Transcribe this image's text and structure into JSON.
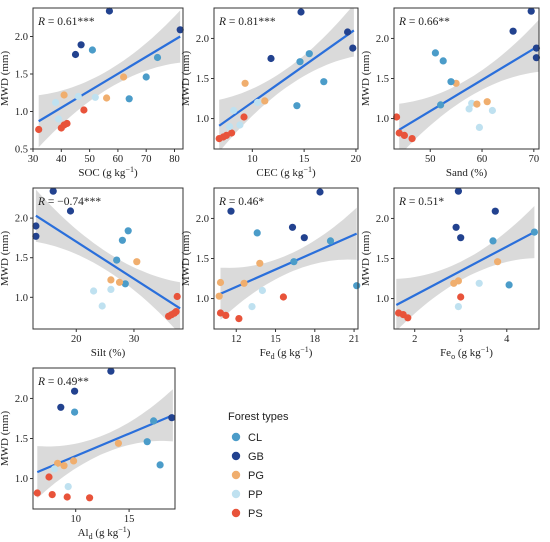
{
  "legend": {
    "title": "Forest types",
    "items": [
      {
        "label": "CL",
        "color": "#4b9cc9"
      },
      {
        "label": "GB",
        "color": "#22428f"
      },
      {
        "label": "PG",
        "color": "#f0ae6e"
      },
      {
        "label": "PP",
        "color": "#bfe1f0"
      },
      {
        "label": "PS",
        "color": "#e8533a"
      }
    ]
  },
  "style": {
    "fit_line": "#2a6fdb",
    "band": "#d3d3d3"
  },
  "chart_data": [
    {
      "type": "scatter",
      "id": "soc",
      "stat_label": "R = 0.61***",
      "stat_r": "R",
      "stat_rest": " = 0.61***",
      "xlabel": "SOC (g kg⁻¹)",
      "x_main": "SOC (g kg",
      "x_sup": "−1",
      "x_sub": "",
      "x_tail": ")",
      "ylabel": "MWD (mm)",
      "xlim": [
        30,
        83
      ],
      "ylim": [
        0.5,
        2.38
      ],
      "xticks": [
        30,
        40,
        50,
        60,
        70,
        80
      ],
      "yticks": [
        0.5,
        1.0,
        1.5,
        2.0
      ],
      "fit": {
        "x": [
          32,
          82
        ],
        "y": [
          0.87,
          2.0
        ]
      },
      "points": [
        {
          "x": 32,
          "y": 0.76,
          "group": "PS"
        },
        {
          "x": 40,
          "y": 0.78,
          "group": "PS"
        },
        {
          "x": 41,
          "y": 0.82,
          "group": "PS"
        },
        {
          "x": 42,
          "y": 0.84,
          "group": "PS"
        },
        {
          "x": 48,
          "y": 1.02,
          "group": "PS"
        },
        {
          "x": 39,
          "y": 0.9,
          "group": "PP"
        },
        {
          "x": 38,
          "y": 1.12,
          "group": "PP"
        },
        {
          "x": 46,
          "y": 1.2,
          "group": "PP"
        },
        {
          "x": 52,
          "y": 1.19,
          "group": "PP"
        },
        {
          "x": 41,
          "y": 1.22,
          "group": "PG"
        },
        {
          "x": 56,
          "y": 1.18,
          "group": "PG"
        },
        {
          "x": 62,
          "y": 1.46,
          "group": "PG"
        },
        {
          "x": 51,
          "y": 1.82,
          "group": "CL"
        },
        {
          "x": 64,
          "y": 1.17,
          "group": "CL"
        },
        {
          "x": 70,
          "y": 1.46,
          "group": "CL"
        },
        {
          "x": 74,
          "y": 1.72,
          "group": "CL"
        },
        {
          "x": 45,
          "y": 1.76,
          "group": "GB"
        },
        {
          "x": 47,
          "y": 1.89,
          "group": "GB"
        },
        {
          "x": 57,
          "y": 2.34,
          "group": "GB"
        },
        {
          "x": 82,
          "y": 2.09,
          "group": "GB"
        }
      ]
    },
    {
      "type": "scatter",
      "id": "cec",
      "stat_label": "R = 0.81***",
      "stat_r": "R",
      "stat_rest": " = 0.81***",
      "xlabel": "CEC (g kg⁻¹)",
      "x_main": "CEC (g kg",
      "x_sup": "−1",
      "x_sub": "",
      "x_tail": ")",
      "ylabel": "MWD (mm)",
      "xlim": [
        6.3,
        20.2
      ],
      "ylim": [
        0.62,
        2.38
      ],
      "xticks": [
        10,
        15,
        20
      ],
      "yticks": [
        1.0,
        1.5,
        2.0
      ],
      "fit": {
        "x": [
          6.8,
          19.8
        ],
        "y": [
          0.91,
          2.1
        ]
      },
      "points": [
        {
          "x": 6.8,
          "y": 0.75,
          "group": "PS"
        },
        {
          "x": 7.2,
          "y": 0.77,
          "group": "PS"
        },
        {
          "x": 7.5,
          "y": 0.79,
          "group": "PS"
        },
        {
          "x": 8.0,
          "y": 0.82,
          "group": "PS"
        },
        {
          "x": 9.2,
          "y": 1.02,
          "group": "PS"
        },
        {
          "x": 7.8,
          "y": 0.9,
          "group": "PP"
        },
        {
          "x": 8.2,
          "y": 1.1,
          "group": "PP"
        },
        {
          "x": 8.8,
          "y": 0.92,
          "group": "PP"
        },
        {
          "x": 10.5,
          "y": 1.2,
          "group": "PP"
        },
        {
          "x": 9.3,
          "y": 1.44,
          "group": "PG"
        },
        {
          "x": 11.2,
          "y": 1.22,
          "group": "PG"
        },
        {
          "x": 14.3,
          "y": 1.16,
          "group": "CL"
        },
        {
          "x": 15.5,
          "y": 1.81,
          "group": "CL"
        },
        {
          "x": 16.9,
          "y": 1.46,
          "group": "CL"
        },
        {
          "x": 14.6,
          "y": 1.71,
          "group": "CL"
        },
        {
          "x": 11.8,
          "y": 1.75,
          "group": "GB"
        },
        {
          "x": 14.7,
          "y": 2.33,
          "group": "GB"
        },
        {
          "x": 19.2,
          "y": 2.08,
          "group": "GB"
        },
        {
          "x": 19.7,
          "y": 1.88,
          "group": "GB"
        }
      ]
    },
    {
      "type": "scatter",
      "id": "sand",
      "stat_label": "R = 0.66**",
      "stat_r": "R",
      "stat_rest": " = 0.66**",
      "xlabel": "Sand (%)",
      "x_main": "Sand (%)",
      "x_sup": "",
      "x_sub": "",
      "x_tail": "",
      "ylabel": "MWD (mm)",
      "xlim": [
        43,
        71
      ],
      "ylim": [
        0.62,
        2.38
      ],
      "xticks": [
        50,
        60,
        70
      ],
      "yticks": [
        1.0,
        1.5,
        2.0
      ],
      "fit": {
        "x": [
          44,
          71
        ],
        "y": [
          0.86,
          1.91
        ]
      },
      "points": [
        {
          "x": 43.5,
          "y": 1.02,
          "group": "PS"
        },
        {
          "x": 44,
          "y": 0.82,
          "group": "PS"
        },
        {
          "x": 45,
          "y": 0.79,
          "group": "PS"
        },
        {
          "x": 46.5,
          "y": 0.75,
          "group": "PS"
        },
        {
          "x": 57.5,
          "y": 1.12,
          "group": "PP"
        },
        {
          "x": 58,
          "y": 1.19,
          "group": "PP"
        },
        {
          "x": 59.5,
          "y": 0.89,
          "group": "PP"
        },
        {
          "x": 62,
          "y": 1.1,
          "group": "PP"
        },
        {
          "x": 55,
          "y": 1.44,
          "group": "PG"
        },
        {
          "x": 59,
          "y": 1.18,
          "group": "PG"
        },
        {
          "x": 61,
          "y": 1.21,
          "group": "PG"
        },
        {
          "x": 51,
          "y": 1.82,
          "group": "CL"
        },
        {
          "x": 52.5,
          "y": 1.72,
          "group": "CL"
        },
        {
          "x": 54,
          "y": 1.46,
          "group": "CL"
        },
        {
          "x": 52,
          "y": 1.17,
          "group": "CL"
        },
        {
          "x": 66,
          "y": 2.09,
          "group": "GB"
        },
        {
          "x": 69.5,
          "y": 2.34,
          "group": "GB"
        },
        {
          "x": 70.5,
          "y": 1.88,
          "group": "GB"
        },
        {
          "x": 70.5,
          "y": 1.76,
          "group": "GB"
        }
      ]
    },
    {
      "type": "scatter",
      "id": "silt",
      "stat_label": "R = −0.74***",
      "stat_r": "R",
      "stat_rest": " = −0.74***",
      "xlabel": "Silt (%)",
      "x_main": "Silt (%)",
      "x_sup": "",
      "x_sub": "",
      "x_tail": "",
      "ylabel": "MWD (mm)",
      "xlim": [
        12.5,
        38.5
      ],
      "ylim": [
        0.6,
        2.38
      ],
      "xticks": [
        20,
        30
      ],
      "yticks": [
        1.0,
        1.5,
        2.0
      ],
      "fit": {
        "x": [
          13,
          38
        ],
        "y": [
          2.03,
          0.86
        ]
      },
      "points": [
        {
          "x": 13,
          "y": 1.9,
          "group": "GB"
        },
        {
          "x": 13,
          "y": 1.77,
          "group": "GB"
        },
        {
          "x": 16,
          "y": 2.34,
          "group": "GB"
        },
        {
          "x": 19,
          "y": 2.09,
          "group": "GB"
        },
        {
          "x": 28,
          "y": 1.72,
          "group": "CL"
        },
        {
          "x": 29,
          "y": 1.84,
          "group": "CL"
        },
        {
          "x": 27,
          "y": 1.47,
          "group": "CL"
        },
        {
          "x": 28.5,
          "y": 1.17,
          "group": "CL"
        },
        {
          "x": 26,
          "y": 1.22,
          "group": "PG"
        },
        {
          "x": 27.5,
          "y": 1.19,
          "group": "PG"
        },
        {
          "x": 30.5,
          "y": 1.45,
          "group": "PG"
        },
        {
          "x": 23,
          "y": 1.08,
          "group": "PP"
        },
        {
          "x": 24.5,
          "y": 0.89,
          "group": "PP"
        },
        {
          "x": 26,
          "y": 1.1,
          "group": "PP"
        },
        {
          "x": 37.5,
          "y": 1.01,
          "group": "PS"
        },
        {
          "x": 36,
          "y": 0.76,
          "group": "PS"
        },
        {
          "x": 36.5,
          "y": 0.78,
          "group": "PS"
        },
        {
          "x": 37,
          "y": 0.8,
          "group": "PS"
        },
        {
          "x": 37.3,
          "y": 0.82,
          "group": "PS"
        }
      ]
    },
    {
      "type": "scatter",
      "id": "fed",
      "stat_label": "R = 0.46*",
      "stat_r": "R",
      "stat_rest": " = 0.46*",
      "xlabel": "Fed (g kg⁻¹)",
      "x_main": "Fe",
      "x_sup": "−1",
      "x_sub": "d",
      "x_tail": ")",
      "ylabel": "MWD (mm)",
      "xlim": [
        10.3,
        21.3
      ],
      "ylim": [
        0.62,
        2.38
      ],
      "xticks": [
        12,
        15,
        18,
        21
      ],
      "yticks": [
        1.0,
        1.5,
        2.0
      ],
      "fit": {
        "x": [
          10.8,
          21.2
        ],
        "y": [
          1.06,
          1.81
        ]
      },
      "points": [
        {
          "x": 10.8,
          "y": 0.82,
          "group": "PS"
        },
        {
          "x": 11.2,
          "y": 0.79,
          "group": "PS"
        },
        {
          "x": 12.2,
          "y": 0.75,
          "group": "PS"
        },
        {
          "x": 15.6,
          "y": 1.02,
          "group": "PS"
        },
        {
          "x": 10.7,
          "y": 1.03,
          "group": "PG"
        },
        {
          "x": 12.6,
          "y": 1.19,
          "group": "PG"
        },
        {
          "x": 13.8,
          "y": 1.44,
          "group": "PG"
        },
        {
          "x": 10.8,
          "y": 1.2,
          "group": "PG"
        },
        {
          "x": 13.2,
          "y": 0.9,
          "group": "PP"
        },
        {
          "x": 14.0,
          "y": 1.1,
          "group": "PP"
        },
        {
          "x": 13.6,
          "y": 1.82,
          "group": "CL"
        },
        {
          "x": 16.4,
          "y": 1.46,
          "group": "CL"
        },
        {
          "x": 19.2,
          "y": 1.72,
          "group": "CL"
        },
        {
          "x": 21.2,
          "y": 1.16,
          "group": "CL"
        },
        {
          "x": 11.6,
          "y": 2.09,
          "group": "GB"
        },
        {
          "x": 16.3,
          "y": 1.89,
          "group": "GB"
        },
        {
          "x": 17.2,
          "y": 1.76,
          "group": "GB"
        },
        {
          "x": 18.4,
          "y": 2.33,
          "group": "GB"
        }
      ]
    },
    {
      "type": "scatter",
      "id": "feo",
      "stat_label": "R = 0.51*",
      "stat_r": "R",
      "stat_rest": " = 0.51*",
      "xlabel": "Feo (g kg⁻¹)",
      "x_main": "Fe",
      "x_sup": "−1",
      "x_sub": "o",
      "x_tail": ")",
      "ylabel": "MWD (mm)",
      "xlim": [
        1.55,
        4.7
      ],
      "ylim": [
        0.62,
        2.38
      ],
      "xticks": [
        2,
        3,
        4
      ],
      "yticks": [
        1.0,
        1.5,
        2.0
      ],
      "fit": {
        "x": [
          1.6,
          4.6
        ],
        "y": [
          0.92,
          1.83
        ]
      },
      "points": [
        {
          "x": 1.65,
          "y": 0.82,
          "group": "PS"
        },
        {
          "x": 1.75,
          "y": 0.8,
          "group": "PS"
        },
        {
          "x": 1.85,
          "y": 0.76,
          "group": "PS"
        },
        {
          "x": 3.0,
          "y": 1.02,
          "group": "PS"
        },
        {
          "x": 2.85,
          "y": 1.19,
          "group": "PG"
        },
        {
          "x": 2.95,
          "y": 1.22,
          "group": "PG"
        },
        {
          "x": 3.8,
          "y": 1.46,
          "group": "PG"
        },
        {
          "x": 2.95,
          "y": 0.9,
          "group": "PP"
        },
        {
          "x": 3.4,
          "y": 1.19,
          "group": "PP"
        },
        {
          "x": 3.7,
          "y": 1.72,
          "group": "CL"
        },
        {
          "x": 4.05,
          "y": 1.17,
          "group": "CL"
        },
        {
          "x": 4.6,
          "y": 1.83,
          "group": "CL"
        },
        {
          "x": 2.9,
          "y": 1.89,
          "group": "GB"
        },
        {
          "x": 2.95,
          "y": 2.34,
          "group": "GB"
        },
        {
          "x": 3.0,
          "y": 1.76,
          "group": "GB"
        },
        {
          "x": 3.75,
          "y": 2.09,
          "group": "GB"
        }
      ]
    },
    {
      "type": "scatter",
      "id": "ald",
      "stat_label": "R = 0.49**",
      "stat_r": "R",
      "stat_rest": " = 0.49**",
      "xlabel": "Ald (g kg⁻¹)",
      "x_main": "Al",
      "x_sup": "−1",
      "x_sub": "d",
      "x_tail": ")",
      "ylabel": "MWD (mm)",
      "xlim": [
        6.0,
        19.3
      ],
      "ylim": [
        0.62,
        2.38
      ],
      "xticks": [
        10,
        15
      ],
      "yticks": [
        1.0,
        1.5,
        2.0
      ],
      "fit": {
        "x": [
          6.4,
          19.1
        ],
        "y": [
          1.08,
          1.79
        ]
      },
      "points": [
        {
          "x": 6.4,
          "y": 0.82,
          "group": "PS"
        },
        {
          "x": 7.5,
          "y": 1.02,
          "group": "PS"
        },
        {
          "x": 7.8,
          "y": 0.8,
          "group": "PS"
        },
        {
          "x": 9.2,
          "y": 0.77,
          "group": "PS"
        },
        {
          "x": 11.3,
          "y": 0.76,
          "group": "PS"
        },
        {
          "x": 8.3,
          "y": 1.19,
          "group": "PG"
        },
        {
          "x": 8.9,
          "y": 1.16,
          "group": "PG"
        },
        {
          "x": 9.8,
          "y": 1.22,
          "group": "PG"
        },
        {
          "x": 14.0,
          "y": 1.44,
          "group": "PG"
        },
        {
          "x": 8.0,
          "y": 1.12,
          "group": "PP"
        },
        {
          "x": 9.3,
          "y": 0.9,
          "group": "PP"
        },
        {
          "x": 9.9,
          "y": 1.83,
          "group": "CL"
        },
        {
          "x": 16.7,
          "y": 1.46,
          "group": "CL"
        },
        {
          "x": 17.9,
          "y": 1.17,
          "group": "CL"
        },
        {
          "x": 17.3,
          "y": 1.72,
          "group": "CL"
        },
        {
          "x": 8.6,
          "y": 1.89,
          "group": "GB"
        },
        {
          "x": 9.9,
          "y": 2.09,
          "group": "GB"
        },
        {
          "x": 13.3,
          "y": 2.34,
          "group": "GB"
        },
        {
          "x": 19.0,
          "y": 1.76,
          "group": "GB"
        }
      ]
    }
  ]
}
